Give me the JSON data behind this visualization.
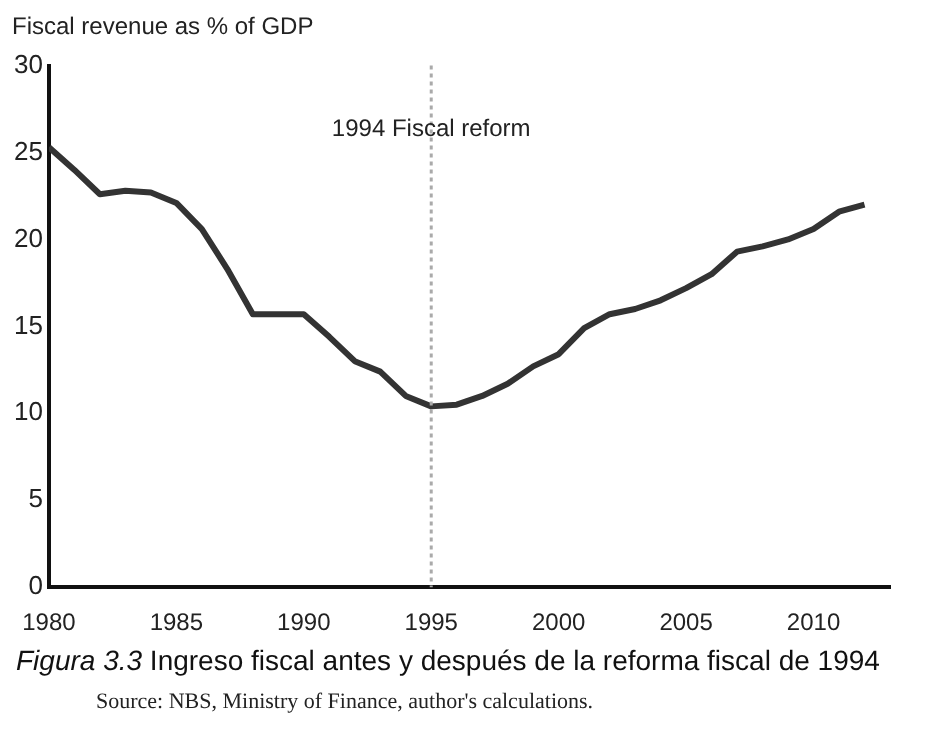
{
  "chart_data": {
    "type": "line",
    "ylabel": "Fiscal revenue as % of GDP",
    "x": [
      1980,
      1981,
      1982,
      1983,
      1984,
      1985,
      1986,
      1987,
      1988,
      1989,
      1990,
      1991,
      1992,
      1993,
      1994,
      1995,
      1996,
      1997,
      1998,
      1999,
      2000,
      2001,
      2002,
      2003,
      2004,
      2005,
      2006,
      2007,
      2008,
      2009,
      2010,
      2011,
      2012
    ],
    "series": [
      {
        "color": "#333333",
        "values": [
          25.3,
          24.0,
          22.6,
          22.8,
          22.7,
          22.1,
          20.6,
          18.3,
          15.7,
          15.7,
          15.7,
          14.4,
          13.0,
          12.4,
          11.0,
          10.4,
          10.5,
          11.0,
          11.7,
          12.7,
          13.4,
          14.9,
          15.7,
          16.0,
          16.5,
          17.2,
          18.0,
          19.3,
          19.6,
          20.0,
          20.6,
          21.6,
          22.0
        ]
      }
    ],
    "xlim": [
      1980,
      2013
    ],
    "xticks": [
      1980,
      1985,
      1990,
      1995,
      2000,
      2005,
      2010
    ],
    "ylim": [
      0,
      30
    ],
    "yticks": [
      0,
      5,
      10,
      15,
      20,
      25,
      30
    ],
    "grid": false,
    "legend": false,
    "marker": "none",
    "line_style": "solid",
    "ref_lines": [
      {
        "axis": "x",
        "value": 1995,
        "label": "1994 Fiscal reform",
        "color": "#aaaaaa",
        "line_style": "dotted"
      }
    ],
    "annotations": [
      "Figura 3.3 Ingreso fiscal antes y después de la reforma fiscal de 1994",
      "Source: NBS, Ministry of Finance, author's calculations."
    ]
  }
}
